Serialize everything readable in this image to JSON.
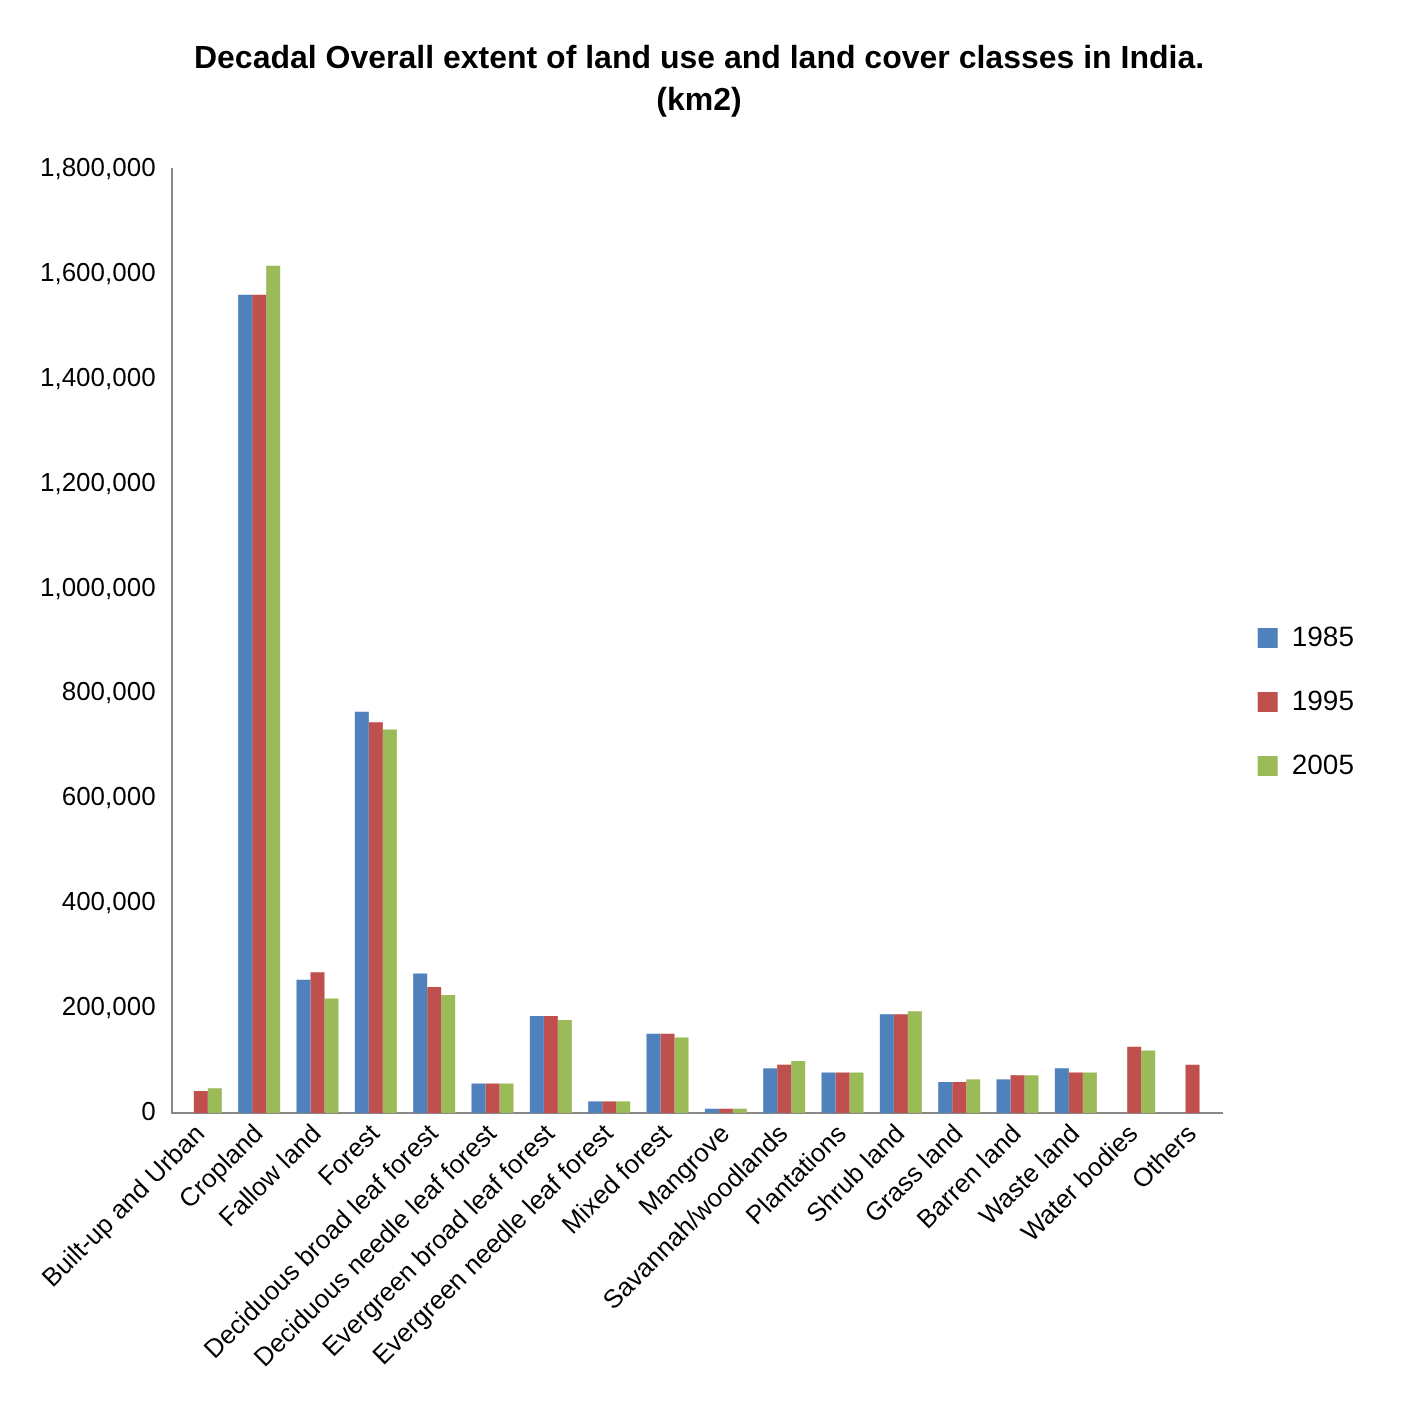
{
  "chart_data": {
    "type": "bar",
    "title": "Decadal Overall extent of land use and land cover classes in India.",
    "subtitle": "(km2)",
    "categories": [
      "Built-up and Urban",
      "Cropland",
      "Fallow land",
      "Forest",
      "Deciduous broad leaf forest",
      "Deciduous needle leaf forest",
      "Evergreen broad leaf forest",
      "Evergreen needle leaf forest",
      "Mixed forest",
      "Mangrove",
      "Savannah/woodlands",
      "Plantations",
      "Shrub land",
      "Grass land",
      "Barren land",
      "Waste land",
      "Water bodies",
      "Others"
    ],
    "series": [
      {
        "name": "1985",
        "color": "#4f81bd",
        "values": [
          null,
          1560000,
          254000,
          765000,
          266000,
          56000,
          185000,
          22000,
          151000,
          8000,
          85000,
          77000,
          188000,
          59000,
          64000,
          85000,
          null,
          null
        ]
      },
      {
        "name": "1995",
        "color": "#c0504d",
        "values": [
          42000,
          1560000,
          268000,
          745000,
          240000,
          56000,
          185000,
          22000,
          151000,
          8000,
          92000,
          77000,
          188000,
          59000,
          72000,
          77000,
          126000,
          92000
        ]
      },
      {
        "name": "2005",
        "color": "#9bbb59",
        "values": [
          47000,
          1615000,
          218000,
          731000,
          225000,
          56000,
          177000,
          22000,
          144000,
          8000,
          99000,
          77000,
          194000,
          64000,
          72000,
          77000,
          119000,
          null
        ]
      }
    ],
    "ylim": [
      0,
      1800000
    ],
    "yticks": [
      0,
      {
        "value": 200000,
        "label": "200,000"
      },
      {
        "value": 400000,
        "label": "400,000"
      },
      {
        "value": 600000,
        "label": "600,000"
      },
      {
        "value": 800000,
        "label": "800,000"
      },
      {
        "value": 1000000,
        "label": "1,000,000"
      },
      {
        "value": 1200000,
        "label": "1,200,000"
      },
      {
        "value": 1400000,
        "label": "1,400,000"
      },
      {
        "value": 1600000,
        "label": "1,600,000"
      },
      {
        "value": 1800000,
        "label": "1,800,000"
      }
    ],
    "grid": false,
    "legend": "right"
  }
}
